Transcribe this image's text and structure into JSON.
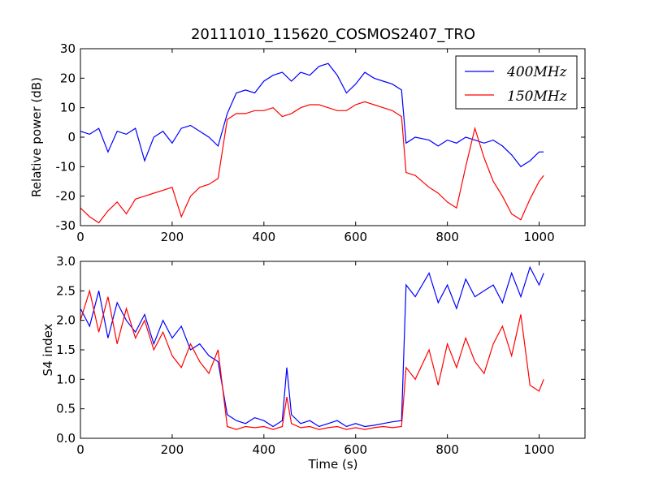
{
  "figure": {
    "title": "20111010_115620_COSMOS2407_TRO",
    "colors": {
      "400MHz": "#0000ff",
      "150MHz": "#ff0000",
      "axes": "#000000",
      "background": "#ffffff"
    }
  },
  "chart_data": [
    {
      "type": "line",
      "title": "20111010_115620_COSMOS2407_TRO",
      "xlabel": "",
      "ylabel": "Relative power (dB)",
      "xlim": [
        0,
        1100
      ],
      "ylim": [
        -30,
        30
      ],
      "xticks": [
        "0",
        "200",
        "400",
        "600",
        "800",
        "1000"
      ],
      "yticks": [
        "-30",
        "-20",
        "-10",
        "0",
        "10",
        "20",
        "30"
      ],
      "legend": {
        "placement": "top-right",
        "entries": [
          "400MHz",
          "150MHz"
        ]
      },
      "series": [
        {
          "name": "400MHz",
          "color": "#0000ff",
          "points": [
            [
              0,
              2
            ],
            [
              20,
              1
            ],
            [
              40,
              3
            ],
            [
              60,
              -5
            ],
            [
              80,
              2
            ],
            [
              100,
              1
            ],
            [
              120,
              3
            ],
            [
              140,
              -8
            ],
            [
              160,
              0
            ],
            [
              180,
              2
            ],
            [
              200,
              -2
            ],
            [
              220,
              3
            ],
            [
              240,
              4
            ],
            [
              260,
              2
            ],
            [
              280,
              0
            ],
            [
              300,
              -3
            ],
            [
              320,
              8
            ],
            [
              340,
              15
            ],
            [
              360,
              16
            ],
            [
              380,
              15
            ],
            [
              400,
              19
            ],
            [
              420,
              21
            ],
            [
              440,
              22
            ],
            [
              460,
              19
            ],
            [
              480,
              22
            ],
            [
              500,
              21
            ],
            [
              520,
              24
            ],
            [
              540,
              25
            ],
            [
              560,
              21
            ],
            [
              580,
              15
            ],
            [
              600,
              18
            ],
            [
              620,
              22
            ],
            [
              640,
              20
            ],
            [
              660,
              19
            ],
            [
              680,
              18
            ],
            [
              700,
              16
            ],
            [
              710,
              -2
            ],
            [
              730,
              0
            ],
            [
              760,
              -1
            ],
            [
              780,
              -3
            ],
            [
              800,
              -1
            ],
            [
              820,
              -2
            ],
            [
              840,
              0
            ],
            [
              860,
              -1
            ],
            [
              880,
              -2
            ],
            [
              900,
              -1
            ],
            [
              920,
              -3
            ],
            [
              940,
              -6
            ],
            [
              960,
              -10
            ],
            [
              980,
              -8
            ],
            [
              1000,
              -5
            ],
            [
              1010,
              -5
            ]
          ]
        },
        {
          "name": "150MHz",
          "color": "#ff0000",
          "points": [
            [
              0,
              -24
            ],
            [
              20,
              -27
            ],
            [
              40,
              -29
            ],
            [
              60,
              -25
            ],
            [
              80,
              -22
            ],
            [
              100,
              -26
            ],
            [
              120,
              -21
            ],
            [
              140,
              -20
            ],
            [
              160,
              -19
            ],
            [
              180,
              -18
            ],
            [
              200,
              -17
            ],
            [
              220,
              -27
            ],
            [
              240,
              -20
            ],
            [
              260,
              -17
            ],
            [
              280,
              -16
            ],
            [
              300,
              -14
            ],
            [
              320,
              6
            ],
            [
              340,
              8
            ],
            [
              360,
              8
            ],
            [
              380,
              9
            ],
            [
              400,
              9
            ],
            [
              420,
              10
            ],
            [
              440,
              7
            ],
            [
              460,
              8
            ],
            [
              480,
              10
            ],
            [
              500,
              11
            ],
            [
              520,
              11
            ],
            [
              540,
              10
            ],
            [
              560,
              9
            ],
            [
              580,
              9
            ],
            [
              600,
              11
            ],
            [
              620,
              12
            ],
            [
              640,
              11
            ],
            [
              660,
              10
            ],
            [
              680,
              9
            ],
            [
              700,
              7
            ],
            [
              710,
              -12
            ],
            [
              730,
              -13
            ],
            [
              760,
              -17
            ],
            [
              780,
              -19
            ],
            [
              800,
              -22
            ],
            [
              820,
              -24
            ],
            [
              840,
              -10
            ],
            [
              860,
              3
            ],
            [
              880,
              -7
            ],
            [
              900,
              -15
            ],
            [
              920,
              -20
            ],
            [
              940,
              -26
            ],
            [
              960,
              -28
            ],
            [
              980,
              -21
            ],
            [
              1000,
              -15
            ],
            [
              1010,
              -13
            ]
          ]
        }
      ]
    },
    {
      "type": "line",
      "title": "",
      "xlabel": "Time (s)",
      "ylabel": "S4 index",
      "xlim": [
        0,
        1100
      ],
      "ylim": [
        0.0,
        3.0
      ],
      "xticks": [
        "0",
        "200",
        "400",
        "600",
        "800",
        "1000"
      ],
      "yticks": [
        "0.0",
        "0.5",
        "1.0",
        "1.5",
        "2.0",
        "2.5",
        "3.0"
      ],
      "series": [
        {
          "name": "400MHz",
          "color": "#0000ff",
          "points": [
            [
              0,
              2.2
            ],
            [
              20,
              1.9
            ],
            [
              40,
              2.5
            ],
            [
              60,
              1.7
            ],
            [
              80,
              2.3
            ],
            [
              100,
              2.0
            ],
            [
              120,
              1.8
            ],
            [
              140,
              2.1
            ],
            [
              160,
              1.6
            ],
            [
              180,
              2.0
            ],
            [
              200,
              1.7
            ],
            [
              220,
              1.9
            ],
            [
              240,
              1.5
            ],
            [
              260,
              1.6
            ],
            [
              280,
              1.4
            ],
            [
              300,
              1.3
            ],
            [
              320,
              0.4
            ],
            [
              340,
              0.3
            ],
            [
              360,
              0.25
            ],
            [
              380,
              0.35
            ],
            [
              400,
              0.3
            ],
            [
              420,
              0.2
            ],
            [
              440,
              0.3
            ],
            [
              450,
              1.2
            ],
            [
              460,
              0.4
            ],
            [
              480,
              0.25
            ],
            [
              500,
              0.3
            ],
            [
              520,
              0.2
            ],
            [
              540,
              0.25
            ],
            [
              560,
              0.3
            ],
            [
              580,
              0.2
            ],
            [
              600,
              0.25
            ],
            [
              620,
              0.2
            ],
            [
              640,
              0.22
            ],
            [
              660,
              0.25
            ],
            [
              680,
              0.28
            ],
            [
              700,
              0.3
            ],
            [
              710,
              2.6
            ],
            [
              730,
              2.4
            ],
            [
              760,
              2.8
            ],
            [
              780,
              2.3
            ],
            [
              800,
              2.6
            ],
            [
              820,
              2.2
            ],
            [
              840,
              2.7
            ],
            [
              860,
              2.4
            ],
            [
              880,
              2.5
            ],
            [
              900,
              2.6
            ],
            [
              920,
              2.3
            ],
            [
              940,
              2.8
            ],
            [
              960,
              2.4
            ],
            [
              980,
              2.9
            ],
            [
              1000,
              2.6
            ],
            [
              1010,
              2.8
            ]
          ]
        },
        {
          "name": "150MHz",
          "color": "#ff0000",
          "points": [
            [
              0,
              2.0
            ],
            [
              20,
              2.5
            ],
            [
              40,
              1.8
            ],
            [
              60,
              2.4
            ],
            [
              80,
              1.6
            ],
            [
              100,
              2.2
            ],
            [
              120,
              1.7
            ],
            [
              140,
              2.0
            ],
            [
              160,
              1.5
            ],
            [
              180,
              1.8
            ],
            [
              200,
              1.4
            ],
            [
              220,
              1.2
            ],
            [
              240,
              1.6
            ],
            [
              260,
              1.3
            ],
            [
              280,
              1.1
            ],
            [
              300,
              1.5
            ],
            [
              320,
              0.2
            ],
            [
              340,
              0.15
            ],
            [
              360,
              0.2
            ],
            [
              380,
              0.18
            ],
            [
              400,
              0.2
            ],
            [
              420,
              0.15
            ],
            [
              440,
              0.2
            ],
            [
              450,
              0.7
            ],
            [
              460,
              0.25
            ],
            [
              480,
              0.18
            ],
            [
              500,
              0.2
            ],
            [
              520,
              0.15
            ],
            [
              540,
              0.18
            ],
            [
              560,
              0.2
            ],
            [
              580,
              0.15
            ],
            [
              600,
              0.18
            ],
            [
              620,
              0.15
            ],
            [
              640,
              0.18
            ],
            [
              660,
              0.2
            ],
            [
              680,
              0.18
            ],
            [
              700,
              0.2
            ],
            [
              710,
              1.2
            ],
            [
              730,
              1.0
            ],
            [
              760,
              1.5
            ],
            [
              780,
              0.9
            ],
            [
              800,
              1.6
            ],
            [
              820,
              1.2
            ],
            [
              840,
              1.7
            ],
            [
              860,
              1.3
            ],
            [
              880,
              1.1
            ],
            [
              900,
              1.6
            ],
            [
              920,
              1.9
            ],
            [
              940,
              1.4
            ],
            [
              960,
              2.1
            ],
            [
              980,
              0.9
            ],
            [
              1000,
              0.8
            ],
            [
              1010,
              1.0
            ]
          ]
        }
      ]
    }
  ]
}
